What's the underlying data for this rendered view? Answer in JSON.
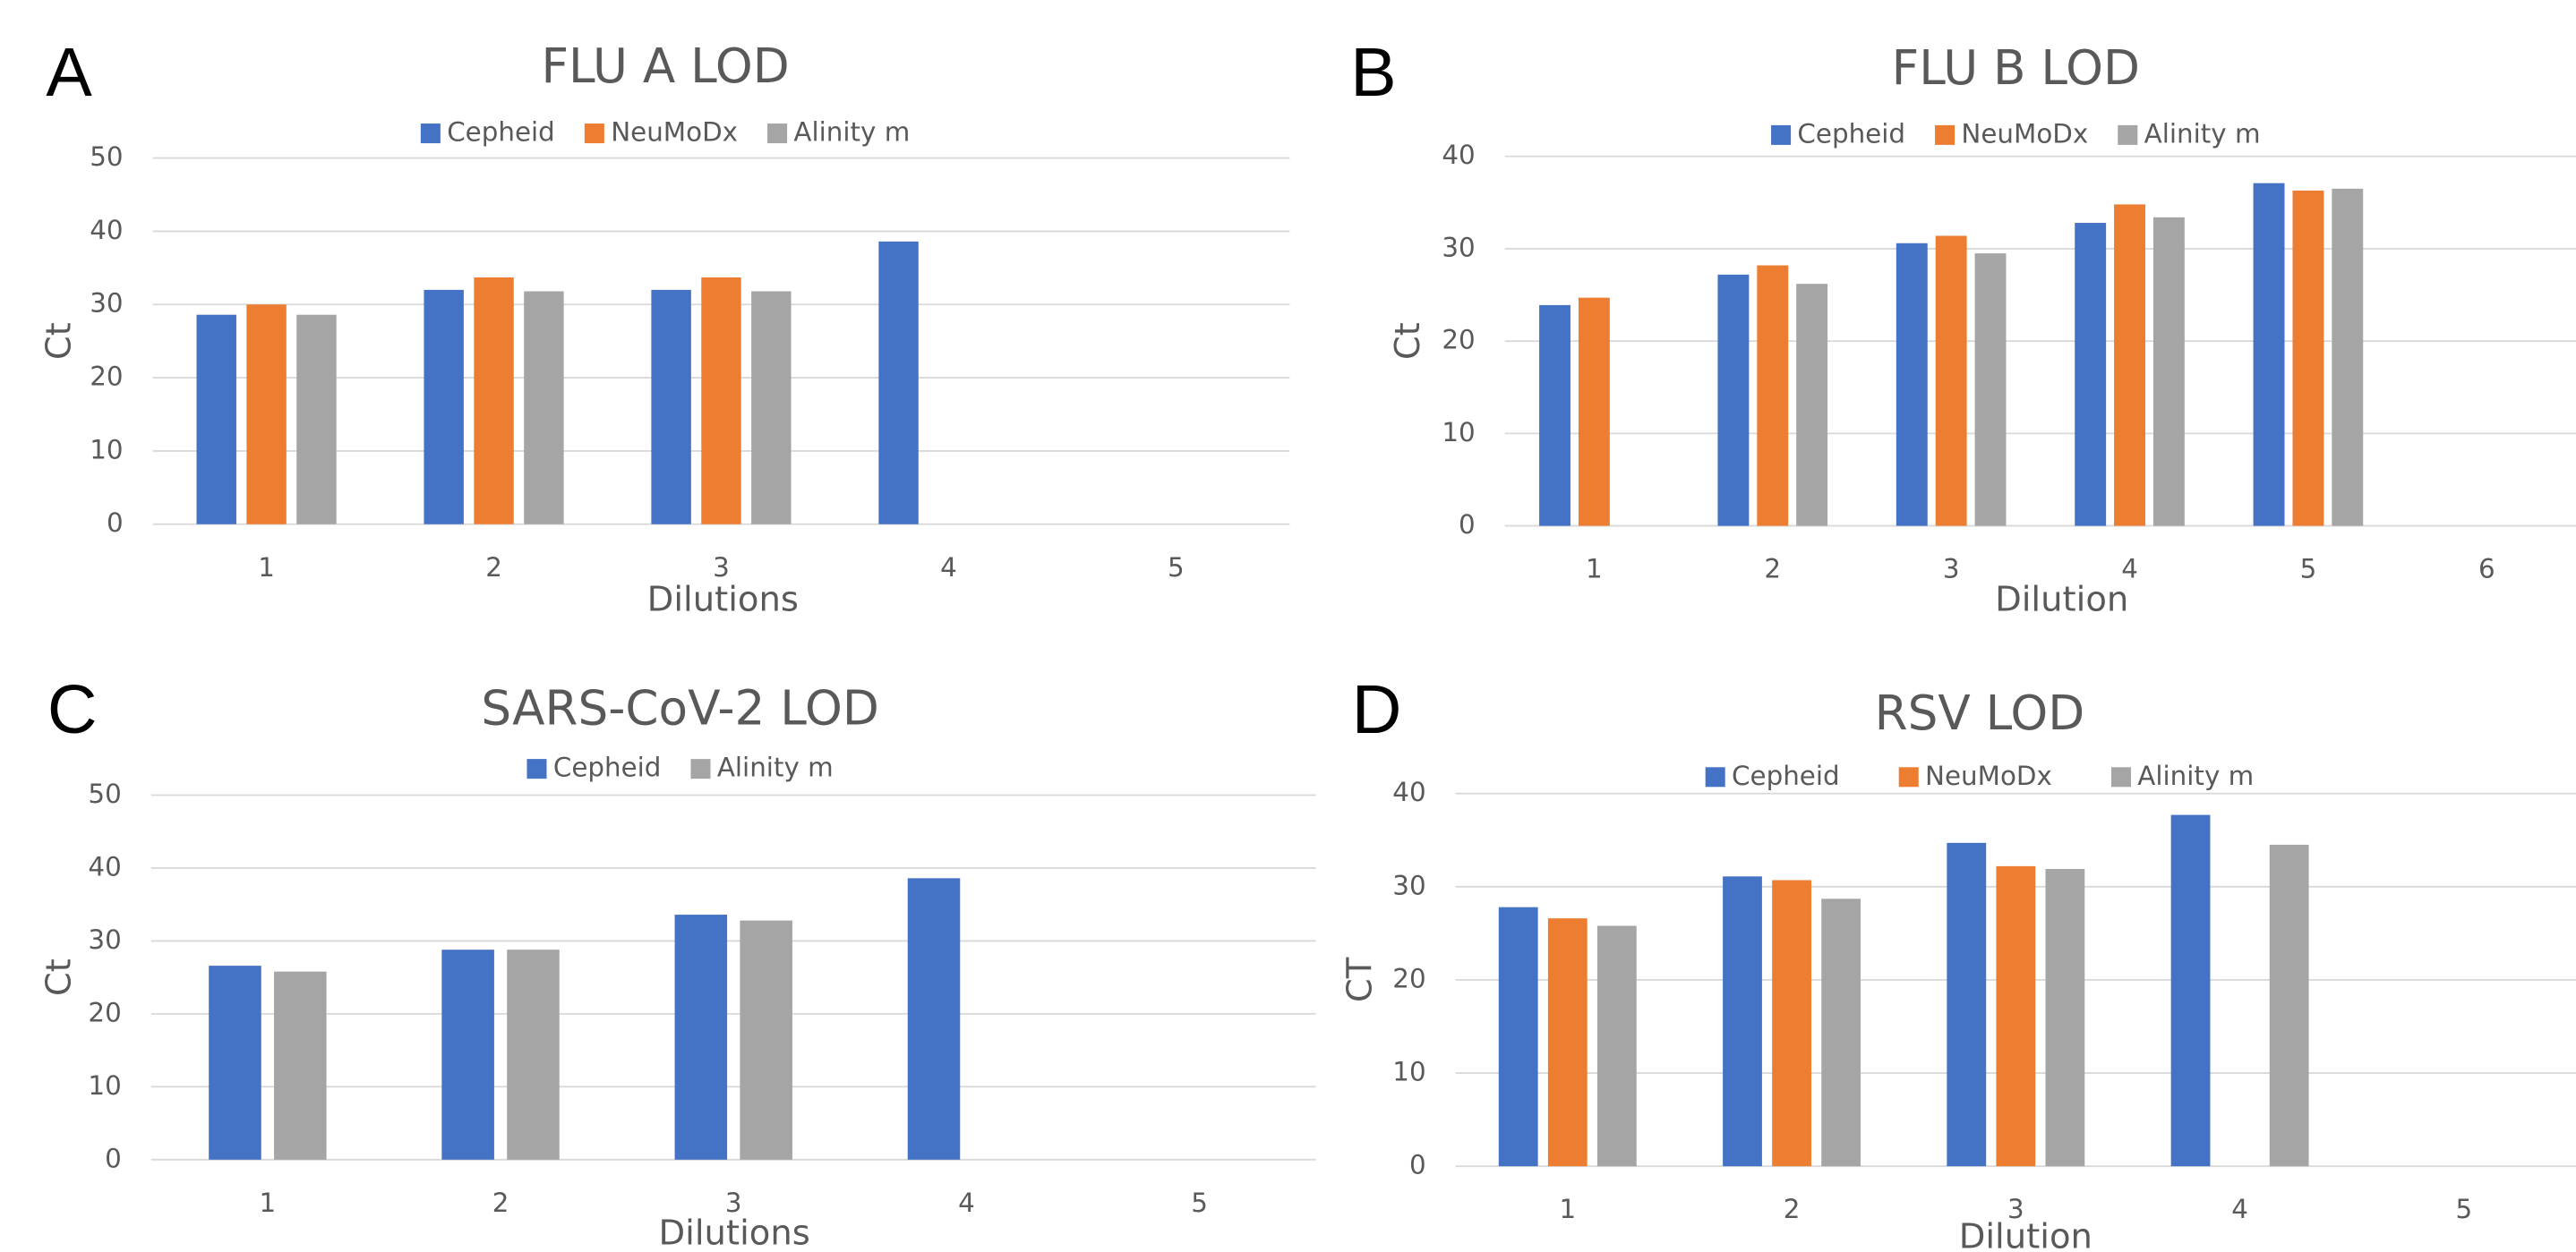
{
  "chart_data": [
    {
      "type": "bar",
      "panel_label": "A",
      "title": "FLU A LOD",
      "x_label": "Dilutions",
      "y_label": "Ct",
      "categories": [
        "1",
        "2",
        "3",
        "4",
        "5"
      ],
      "series": [
        {
          "name": "Cepheid",
          "color": "#4472c4",
          "values": [
            28.6,
            32.0,
            32.0,
            38.6,
            null
          ]
        },
        {
          "name": "NeuMoDx",
          "color": "#ed7d31",
          "values": [
            30.0,
            33.7,
            33.7,
            null,
            null
          ]
        },
        {
          "name": "Alinity m",
          "color": "#a5a5a5",
          "values": [
            28.6,
            31.8,
            31.8,
            null,
            null
          ]
        }
      ],
      "ylim": [
        0,
        50
      ],
      "yticks": [
        0,
        10,
        20,
        30,
        40,
        50
      ],
      "grid": true
    },
    {
      "type": "bar",
      "panel_label": "B",
      "title": "FLU B LOD",
      "x_label": "Dilution",
      "y_label": "Ct",
      "categories": [
        "1",
        "2",
        "3",
        "4",
        "5",
        "6"
      ],
      "series": [
        {
          "name": "Cepheid",
          "color": "#4472c4",
          "values": [
            23.9,
            27.2,
            30.6,
            32.8,
            37.1,
            null
          ]
        },
        {
          "name": "NeuMoDx",
          "color": "#ed7d31",
          "values": [
            24.7,
            28.2,
            31.4,
            34.8,
            36.3,
            null
          ]
        },
        {
          "name": "Alinity m",
          "color": "#a5a5a5",
          "values": [
            null,
            26.2,
            29.5,
            33.4,
            36.5,
            null
          ]
        }
      ],
      "ylim": [
        0,
        40
      ],
      "yticks": [
        0,
        10,
        20,
        30,
        40
      ],
      "grid": true
    },
    {
      "type": "bar",
      "panel_label": "C",
      "title": "SARS-CoV-2 LOD",
      "x_label": "Dilutions",
      "y_label": "Ct",
      "categories": [
        "1",
        "2",
        "3",
        "4",
        "5"
      ],
      "series": [
        {
          "name": "Cepheid",
          "color": "#4472c4",
          "values": [
            26.6,
            28.8,
            33.6,
            38.6,
            null
          ]
        },
        {
          "name": "Alinity m",
          "color": "#a5a5a5",
          "values": [
            25.8,
            28.8,
            32.8,
            null,
            null
          ]
        }
      ],
      "ylim": [
        0,
        50
      ],
      "yticks": [
        0,
        10,
        20,
        30,
        40,
        50
      ],
      "grid": true
    },
    {
      "type": "bar",
      "panel_label": "D",
      "title": "RSV LOD",
      "x_label": "Dilution",
      "y_label": "CT",
      "categories": [
        "1",
        "2",
        "3",
        "4",
        "5"
      ],
      "series": [
        {
          "name": "Cepheid",
          "color": "#4472c4",
          "values": [
            27.8,
            31.1,
            34.7,
            37.7,
            null
          ]
        },
        {
          "name": "NeuMoDx",
          "color": "#ed7d31",
          "values": [
            26.6,
            30.7,
            32.2,
            null,
            null
          ]
        },
        {
          "name": "Alinity m",
          "color": "#a5a5a5",
          "values": [
            25.8,
            28.7,
            31.9,
            34.5,
            null
          ]
        }
      ],
      "ylim": [
        0,
        40
      ],
      "yticks": [
        0,
        10,
        20,
        30,
        40
      ],
      "grid": true
    }
  ]
}
